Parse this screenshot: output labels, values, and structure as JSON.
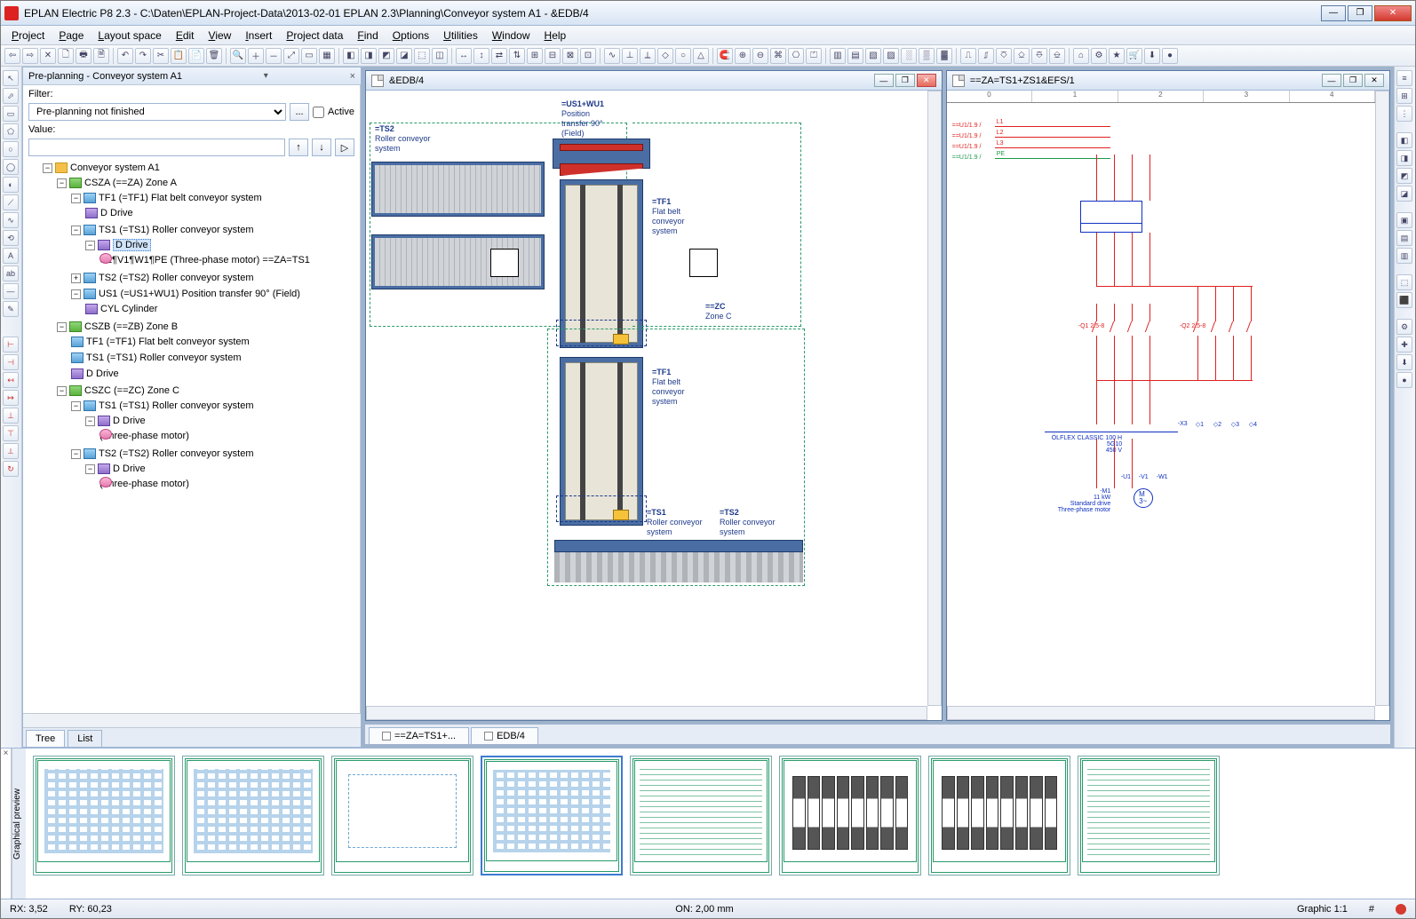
{
  "titlebar": {
    "title": "EPLAN Electric P8 2.3 - C:\\Daten\\EPLAN-Project-Data\\2013-02-01 EPLAN 2.3\\Planning\\Conveyor system A1 - &EDB/4"
  },
  "menu": [
    "Project",
    "Page",
    "Layout space",
    "Edit",
    "View",
    "Insert",
    "Project data",
    "Find",
    "Options",
    "Utilities",
    "Window",
    "Help"
  ],
  "toolbar_groups": [
    [
      "⇦",
      "⇨",
      "✕",
      "🗋",
      "🖶",
      "🗎"
    ],
    [
      "↶",
      "↷",
      "✂",
      "📋",
      "📄",
      "🗑"
    ],
    [
      "🔍",
      "＋",
      "－",
      "⤢",
      "▭",
      "▦"
    ],
    [
      "◧",
      "◨",
      "◩",
      "◪",
      "⬚",
      "◫"
    ],
    [
      "↔",
      "↕",
      "⇄",
      "⇅",
      "⊞",
      "⊟",
      "⊠",
      "⊡"
    ],
    [
      "∿",
      "⊥",
      "⟂",
      "◇",
      "○",
      "△"
    ],
    [
      "🧲",
      "⊕",
      "⊖",
      "⌘",
      "⎔",
      "⏍"
    ],
    [
      "▥",
      "▤",
      "▧",
      "▨",
      "░",
      "▒",
      "▓"
    ],
    [
      "⎍",
      "⎎",
      "⎏",
      "⎐",
      "⎑",
      "⎒"
    ],
    [
      "⌂",
      "⚙",
      "★",
      "🛒",
      "⬇",
      "●"
    ]
  ],
  "left_tools_t": [
    "↖",
    "⬀",
    "▭",
    "⬠",
    "○",
    "◯",
    "◐",
    "⟋",
    "∿",
    "⟲",
    "A",
    "ab",
    "—",
    "✎"
  ],
  "left_tools_b": [
    "⊢",
    "⊣",
    "↤",
    "↦",
    "⊥",
    "⊤",
    "⟂",
    "↻"
  ],
  "right_tools": [
    "≡",
    "⊞",
    "⋮",
    "—",
    "◧",
    "◨",
    "◩",
    "◪",
    "—",
    "▣",
    "▤",
    "▥",
    "—",
    "⬚",
    "⬛",
    "—",
    "⚙",
    "✚",
    "⬇",
    "●"
  ],
  "preplan": {
    "panel_title": "Pre-planning  - Conveyor system A1",
    "filter_label": "Filter:",
    "filter_value": "Pre-planning not finished",
    "filter_btn": "...",
    "active_label": "Active",
    "value_label": "Value:",
    "tabs": [
      "Tree",
      "List"
    ]
  },
  "tree": {
    "root": "Conveyor system A1",
    "zoneA": "CSZA (==ZA) Zone A",
    "a_tf1": "TF1 (=TF1) Flat belt conveyor system",
    "a_tf1_d": "D Drive",
    "a_ts1": "TS1 (=TS1) Roller conveyor system",
    "a_ts1_d": "D Drive",
    "a_ts1_m": "U1¶V1¶W1¶PE (Three-phase motor) ==ZA=TS1",
    "a_ts2": "TS2 (=TS2) Roller conveyor system",
    "a_us1": "US1 (=US1+WU1) Position transfer 90° (Field)",
    "a_cyl": "CYL Cylinder",
    "zoneB": "CSZB (==ZB) Zone B",
    "b_tf1": "TF1 (=TF1) Flat belt conveyor system",
    "b_ts1": "TS1 (=TS1) Roller conveyor system",
    "b_d": "D Drive",
    "zoneC": "CSZC (==ZC) Zone C",
    "c_ts1": "TS1 (=TS1) Roller conveyor system",
    "c_ts1_d": "D Drive",
    "c_ts1_m": "(Three-phase motor)",
    "c_ts2": "TS2 (=TS2) Roller conveyor system",
    "c_ts2_d": "D Drive",
    "c_ts2_m": "(Three-phase motor)"
  },
  "doc_left": {
    "title": "&EDB/4",
    "labels": {
      "ts2": "=TS2",
      "ts2_sub": "Roller conveyor\nsystem",
      "us1": "=US1+WU1",
      "us1_sub": "Position\ntransfer 90°\n(Field)",
      "tf1a": "=TF1",
      "tf1a_sub": "Flat belt\nconveyor\nsystem",
      "zc": "==ZC",
      "zc_sub": "Zone C",
      "tf1b": "=TF1",
      "tf1b_sub": "Flat belt\nconveyor\nsystem",
      "ts1": "=TS1",
      "ts1_sub": "Roller conveyor\nsystem",
      "ts2b": "=TS2",
      "ts2b_sub": "Roller conveyor\nsystem"
    },
    "colors": {
      "conveyor": "#4a6ea3",
      "conveyor_border": "#1e3a6a",
      "red": "#d0302a",
      "dash_green": "#2a9a6a",
      "dash_blue": "#1e3a8a",
      "yellow": "#f5c23a"
    }
  },
  "doc_right": {
    "title": "==ZA=TS1+ZS1&EFS/1",
    "ruler": [
      "0",
      "1",
      "2",
      "3",
      "4"
    ],
    "bus_labels": [
      "L1",
      "L2",
      "L3",
      "PE"
    ],
    "bus_src": [
      "==U1/1.9 /",
      "==U1/1.9 /",
      "==U1/1.9 /",
      "==U1/1.9 /"
    ],
    "cable": "ÖLFLEX CLASSIC 100 H\n5G10\n450 V",
    "motor": "M\n3~",
    "motor_label": "-M1\n11 kW\nStandard drive\nThree-phase motor",
    "q1": "-Q1\n2.5-8",
    "q2": "-Q2\n2.5-8",
    "x3": "-X3",
    "term": [
      "◇1",
      "◇2",
      "◇3",
      "◇4"
    ],
    "u_v_w": [
      "-U1",
      "-V1",
      "-W1"
    ]
  },
  "doc_tabs": [
    "==ZA=TS1+...",
    "EDB/4"
  ],
  "preview": {
    "label": "Graphical preview"
  },
  "status": {
    "rx": "RX: 3,52",
    "ry": "RY: 60,23",
    "on": "ON: 2,00 mm",
    "graphic": "Graphic 1:1",
    "hash": "#"
  }
}
